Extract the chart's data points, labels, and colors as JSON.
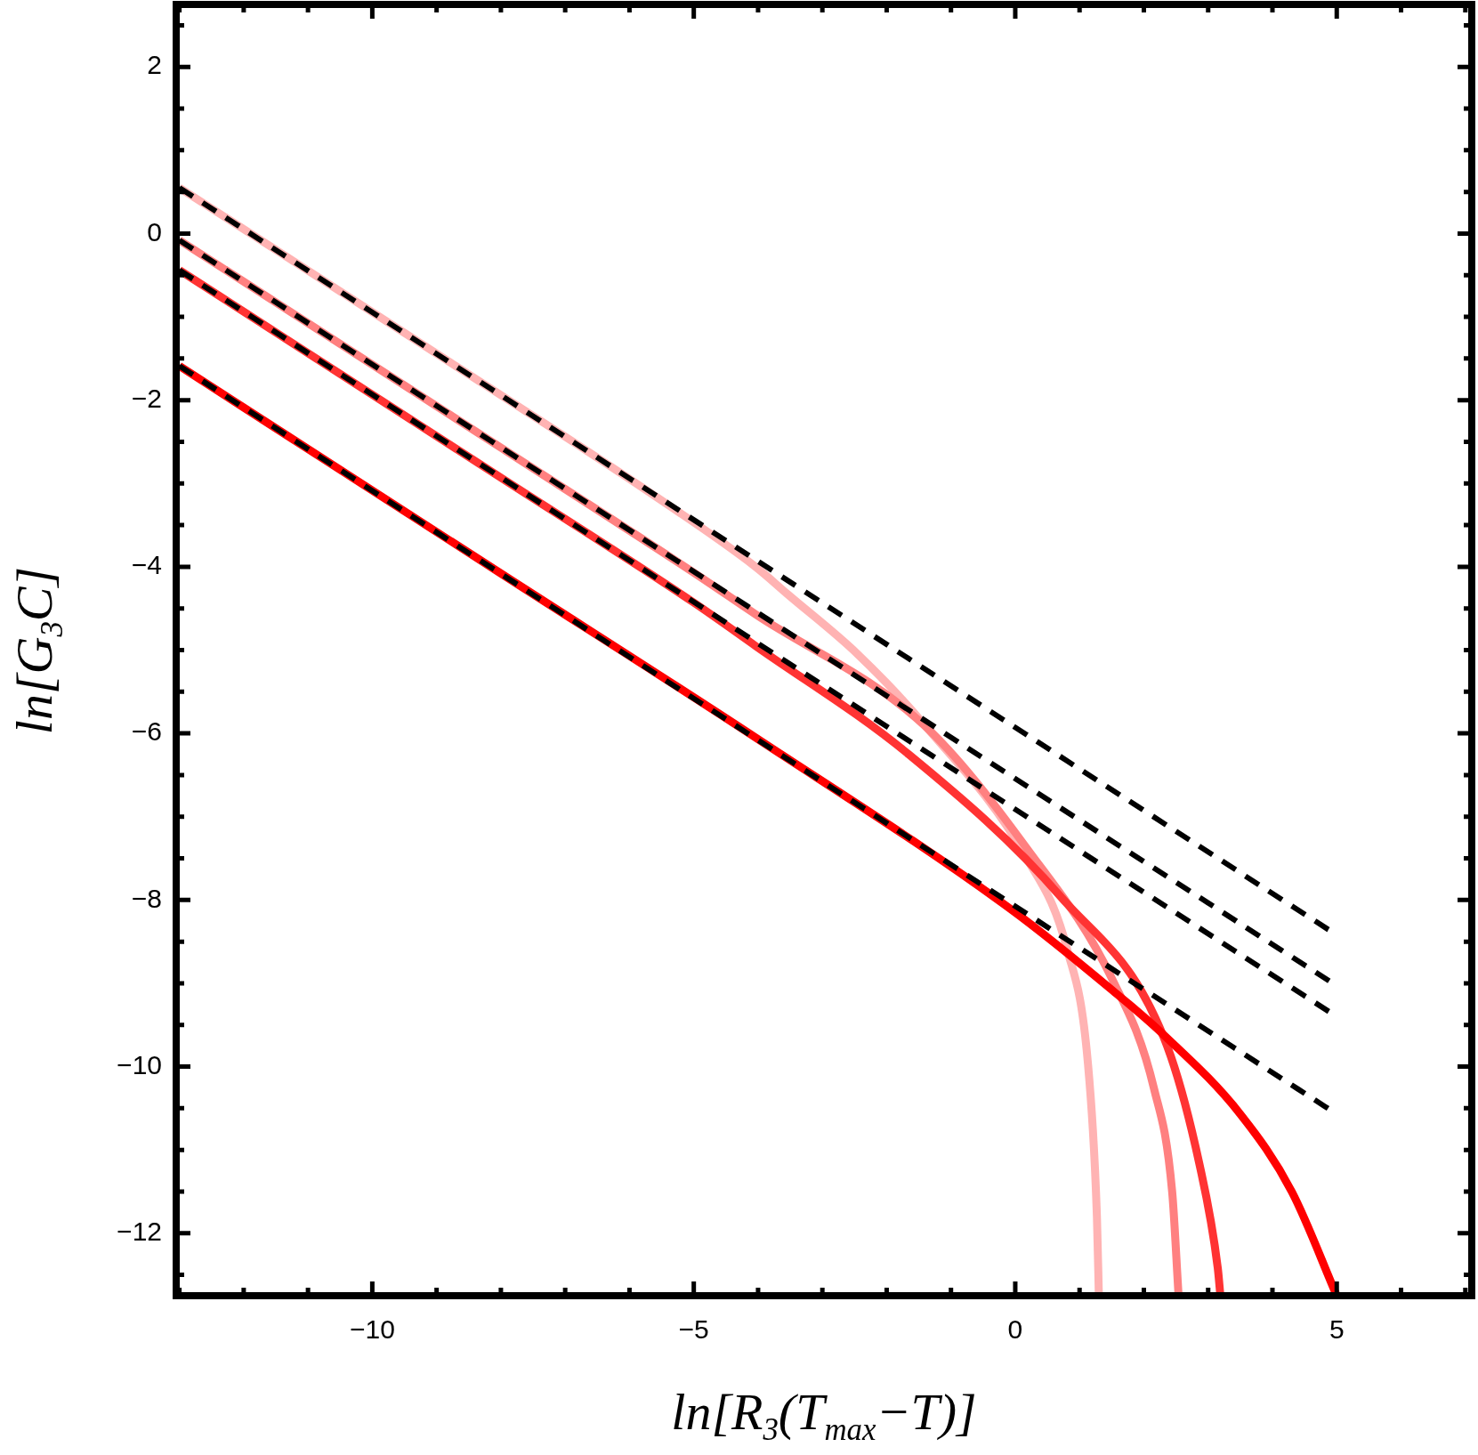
{
  "chart_data": {
    "type": "line",
    "xlabel": "ln[R$_{3}$(T$_{max}$−T)]",
    "ylabel": "ln[G$_{3}$C]",
    "xlim": [
      -13.05,
      7.1
    ],
    "ylim": [
      -12.75,
      2.75
    ],
    "xticks": [
      {
        "value": -13,
        "label": null
      },
      {
        "value": -12,
        "label": null
      },
      {
        "value": -11,
        "label": null
      },
      {
        "value": -10,
        "label": "−10"
      },
      {
        "value": -9,
        "label": null
      },
      {
        "value": -8,
        "label": null
      },
      {
        "value": -7,
        "label": null
      },
      {
        "value": -6,
        "label": null
      },
      {
        "value": -5,
        "label": "−5"
      },
      {
        "value": -4,
        "label": null
      },
      {
        "value": -3,
        "label": null
      },
      {
        "value": -2,
        "label": null
      },
      {
        "value": -1,
        "label": null
      },
      0,
      {
        "value": 1,
        "label": null
      },
      {
        "value": 2,
        "label": null
      },
      {
        "value": 3,
        "label": null
      },
      {
        "value": 4,
        "label": null
      },
      5,
      {
        "value": 6,
        "label": null
      },
      {
        "value": 7,
        "label": null
      }
    ],
    "yticks": [
      {
        "value": -12.5,
        "label": null
      },
      {
        "value": -12,
        "label": "−12"
      },
      {
        "value": -11.5,
        "label": null
      },
      {
        "value": -11,
        "label": null
      },
      {
        "value": -10.5,
        "label": null
      },
      {
        "value": -10,
        "label": "−10"
      },
      {
        "value": -9.5,
        "label": null
      },
      {
        "value": -9,
        "label": null
      },
      {
        "value": -8.5,
        "label": null
      },
      {
        "value": -8,
        "label": "−8"
      },
      {
        "value": -7.5,
        "label": null
      },
      {
        "value": -7,
        "label": null
      },
      {
        "value": -6.5,
        "label": null
      },
      {
        "value": -6,
        "label": "−6"
      },
      {
        "value": -5.5,
        "label": null
      },
      {
        "value": -5,
        "label": null
      },
      {
        "value": -4.5,
        "label": null
      },
      {
        "value": -4,
        "label": "−4"
      },
      {
        "value": -3.5,
        "label": null
      },
      {
        "value": -3,
        "label": null
      },
      {
        "value": -2.5,
        "label": null
      },
      {
        "value": -2,
        "label": "−2"
      },
      {
        "value": -1.5,
        "label": null
      },
      {
        "value": -1,
        "label": null
      },
      {
        "value": -0.5,
        "label": null
      },
      0,
      {
        "value": 0.5,
        "label": null
      },
      {
        "value": 1,
        "label": null
      },
      {
        "value": 1.5,
        "label": null
      },
      2,
      {
        "value": 2.5,
        "label": null
      }
    ],
    "grid": false,
    "legend": false,
    "series": [
      {
        "color": "#ffb3b3",
        "line_style": "solid",
        "x": [
          -13,
          -8,
          -5.76,
          -4.04,
          -3.54,
          -2.45,
          -1.42,
          0.17,
          0.81,
          1.13,
          1.27,
          1.3
        ],
        "values": [
          0.55,
          -1.94,
          -3.07,
          -4.0,
          -4.33,
          -5.05,
          -5.89,
          -7.49,
          -8.6,
          -9.96,
          -11.8,
          -12.75
        ]
      },
      {
        "color": "#ff8080",
        "line_style": "solid",
        "x": [
          -13,
          -8,
          -5,
          -4.04,
          -1.42,
          0.17,
          1.52,
          2.16,
          2.44,
          2.54
        ],
        "values": [
          -0.08,
          -2.57,
          -4.07,
          -4.57,
          -5.9,
          -7.37,
          -8.97,
          -10.27,
          -11.5,
          -12.75
        ]
      },
      {
        "color": "#ff3333",
        "line_style": "solid",
        "x": [
          -13,
          -8,
          -5,
          -4.04,
          -1.66,
          0.73,
          2.31,
          2.87,
          3.15,
          3.19
        ],
        "values": [
          -0.44,
          -2.93,
          -4.43,
          -4.95,
          -6.25,
          -7.98,
          -9.65,
          -11.19,
          -12.42,
          -12.75
        ]
      },
      {
        "color": "#ff0000",
        "line_style": "solid",
        "x": [
          -13,
          -8,
          -4.04,
          -0.07,
          1.52,
          2.31,
          3.5,
          4.3,
          5.0
        ],
        "values": [
          -1.59,
          -4.08,
          -6.05,
          -8.11,
          -9.09,
          -9.62,
          -10.57,
          -11.5,
          -12.75
        ]
      },
      {
        "color": "#000000",
        "line_style": "dashed",
        "x": [
          -13,
          5
        ],
        "values": [
          0.55,
          -8.42
        ]
      },
      {
        "color": "#000000",
        "line_style": "dashed",
        "x": [
          -13,
          5
        ],
        "values": [
          -0.08,
          -9.03
        ]
      },
      {
        "color": "#000000",
        "line_style": "dashed",
        "x": [
          -13,
          5
        ],
        "values": [
          -0.44,
          -9.4
        ]
      },
      {
        "color": "#000000",
        "line_style": "dashed",
        "x": [
          -13,
          5
        ],
        "values": [
          -1.59,
          -10.57
        ]
      }
    ]
  }
}
